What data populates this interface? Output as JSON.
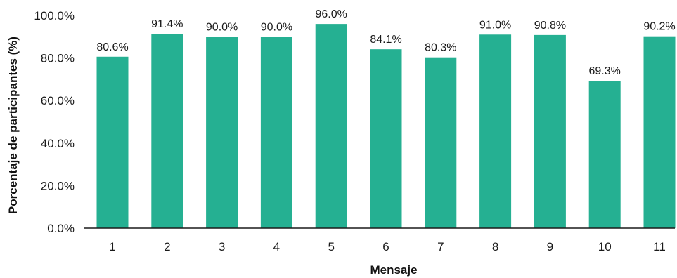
{
  "chart_data": {
    "type": "bar",
    "title": "",
    "xlabel": "Mensaje",
    "ylabel": "Porcentaje de participantes (%)",
    "categories": [
      "1",
      "2",
      "3",
      "4",
      "5",
      "6",
      "7",
      "8",
      "9",
      "10",
      "11"
    ],
    "values": [
      80.6,
      91.4,
      90.0,
      90.0,
      96.0,
      84.1,
      80.3,
      91.0,
      90.8,
      69.3,
      90.2
    ],
    "data_labels": [
      "80.6%",
      "91.4%",
      "90.0%",
      "90.0%",
      "96.0%",
      "84.1%",
      "80.3%",
      "91.0%",
      "90.8%",
      "69.3%",
      "90.2%"
    ],
    "ylim": [
      0,
      100
    ],
    "yticks": [
      0,
      20,
      40,
      60,
      80,
      100
    ],
    "ytick_labels": [
      "0.0%",
      "20.0%",
      "40.0%",
      "60.0%",
      "80.0%",
      "100.0%"
    ],
    "grid": false,
    "legend": "none",
    "bar_color": "#25b092",
    "axis_color": "#1a1a1a"
  }
}
